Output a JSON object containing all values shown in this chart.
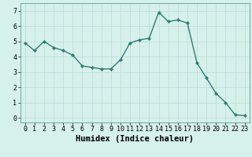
{
  "x": [
    0,
    1,
    2,
    3,
    4,
    5,
    6,
    7,
    8,
    9,
    10,
    11,
    12,
    13,
    14,
    15,
    16,
    17,
    18,
    19,
    20,
    21,
    22,
    23
  ],
  "y": [
    4.9,
    4.4,
    5.0,
    4.6,
    4.4,
    4.1,
    3.4,
    3.3,
    3.2,
    3.2,
    3.8,
    4.9,
    5.1,
    5.2,
    6.9,
    6.3,
    6.4,
    6.2,
    3.6,
    2.6,
    1.6,
    1.0,
    0.2,
    0.15
  ],
  "line_color": "#2e7d72",
  "marker": "D",
  "marker_size": 2.2,
  "line_width": 1.0,
  "bg_color": "#d6f0eb",
  "grid_color": "#b8ddd8",
  "xlabel": "Humidex (Indice chaleur)",
  "xlabel_fontsize": 7.5,
  "tick_fontsize": 6.0,
  "ylim": [
    -0.3,
    7.5
  ],
  "xlim": [
    -0.5,
    23.5
  ],
  "yticks": [
    0,
    1,
    2,
    3,
    4,
    5,
    6,
    7
  ],
  "xticks": [
    0,
    1,
    2,
    3,
    4,
    5,
    6,
    7,
    8,
    9,
    10,
    11,
    12,
    13,
    14,
    15,
    16,
    17,
    18,
    19,
    20,
    21,
    22,
    23
  ]
}
